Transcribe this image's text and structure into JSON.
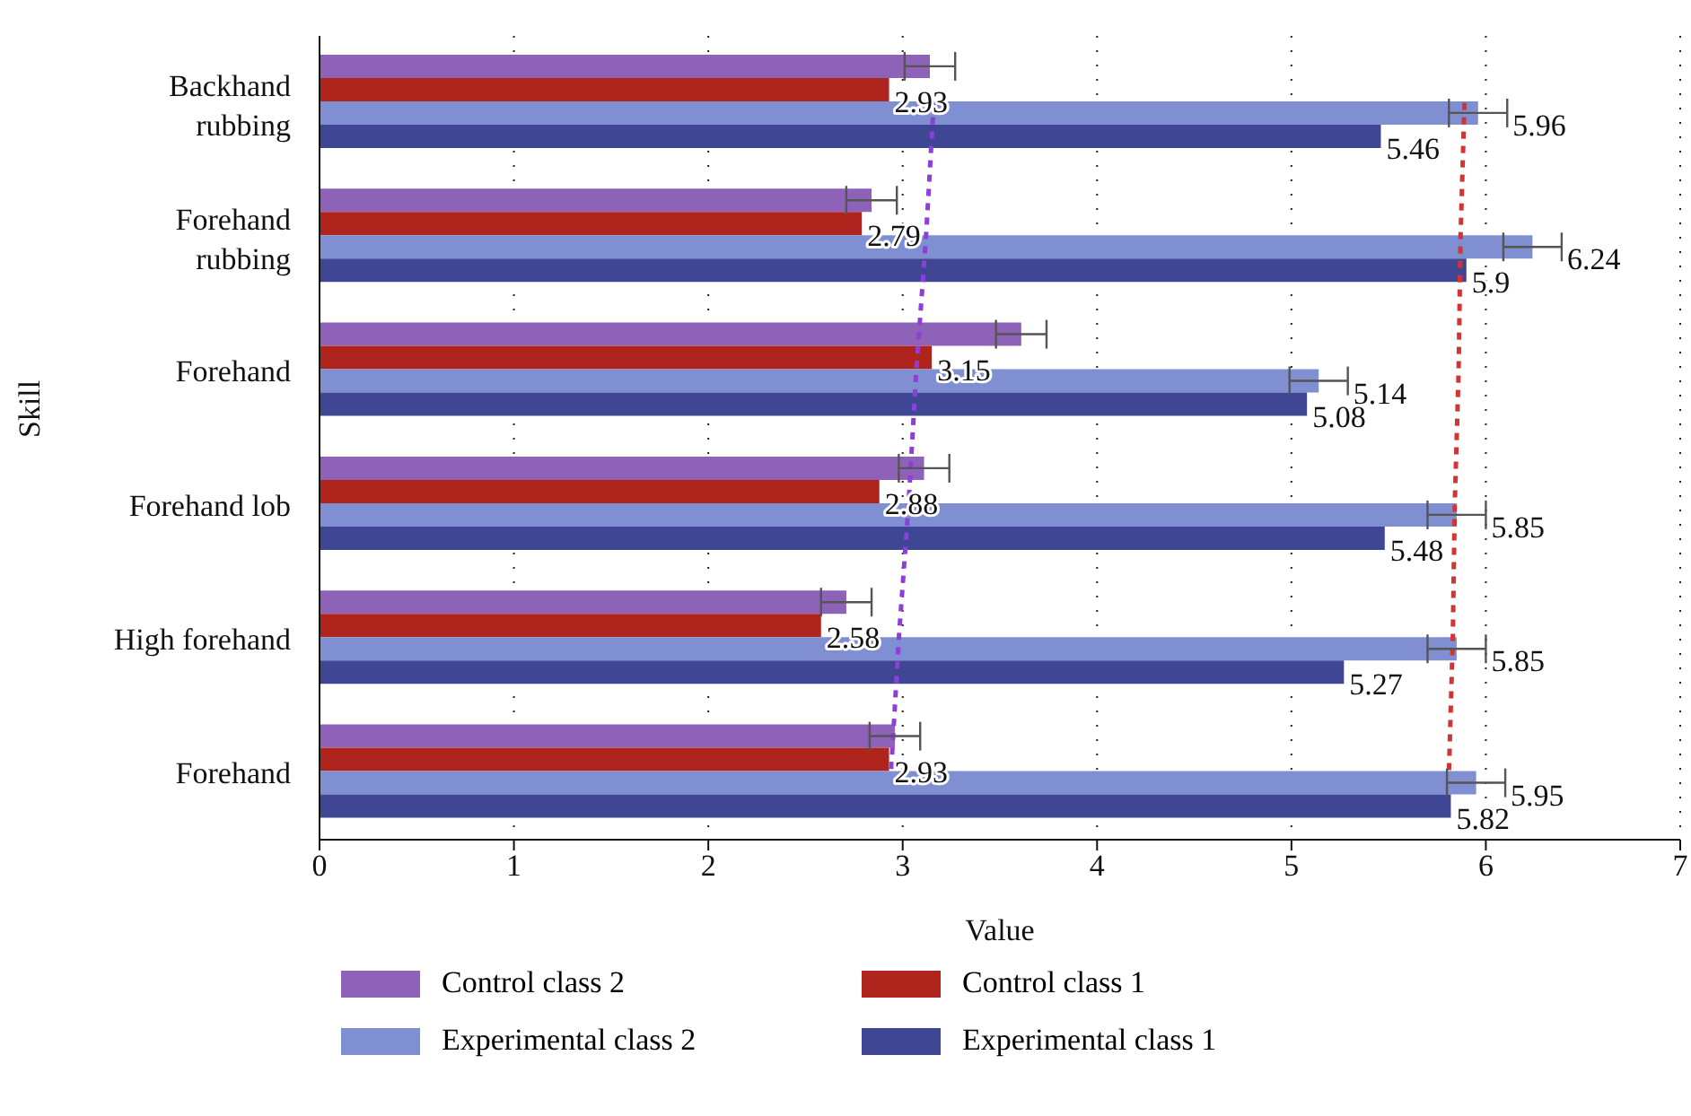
{
  "chart_data": {
    "type": "bar",
    "orientation": "horizontal",
    "xlabel": "Value",
    "ylabel": "Skill",
    "categories": [
      "Backhand rubbing",
      "Forehand rubbing",
      "Forehand",
      "Forehand lob",
      "High forehand",
      "Forehand"
    ],
    "xlim": [
      0,
      7
    ],
    "xticks": [
      0,
      1,
      2,
      3,
      4,
      5,
      6,
      7
    ],
    "grid": "x",
    "legend": "bottom",
    "series": [
      {
        "name": "Control class 2",
        "color": "#8e62b8",
        "values": [
          3.14,
          2.84,
          3.61,
          3.11,
          2.71,
          2.96
        ],
        "errors": [
          0.13,
          0.13,
          0.13,
          0.13,
          0.13,
          0.13
        ]
      },
      {
        "name": "Control class 1",
        "color": "#b0241e",
        "values": [
          2.93,
          2.79,
          3.15,
          2.88,
          2.58,
          2.93
        ],
        "value_labels": [
          "2.93",
          "2.79",
          "3.15",
          "2.88",
          "2.58",
          "2.93"
        ]
      },
      {
        "name": "Experimental class 2",
        "color": "#7f8fd2",
        "values": [
          5.96,
          6.24,
          5.14,
          5.85,
          5.85,
          5.95
        ],
        "errors": [
          0.15,
          0.15,
          0.15,
          0.15,
          0.15,
          0.15
        ],
        "value_labels": [
          "5.96",
          "6.24",
          "5.14",
          "5.85",
          "5.85",
          "5.95"
        ]
      },
      {
        "name": "Experimental class 1",
        "color": "#3f4795",
        "values": [
          5.46,
          5.9,
          5.08,
          5.48,
          5.27,
          5.82
        ],
        "value_labels": [
          "5.46",
          "5.9",
          "5.08",
          "5.48",
          "5.27",
          "5.82"
        ]
      },
      {
        "type": "line",
        "color": "#8d3fd8",
        "line_style": "dashed",
        "values": [
          3.16,
          3.12,
          3.07,
          3.03,
          2.98,
          2.94
        ]
      },
      {
        "type": "line",
        "color": "#d03535",
        "line_style": "dashed",
        "values": [
          5.89,
          5.87,
          5.86,
          5.84,
          5.83,
          5.81
        ]
      }
    ]
  }
}
